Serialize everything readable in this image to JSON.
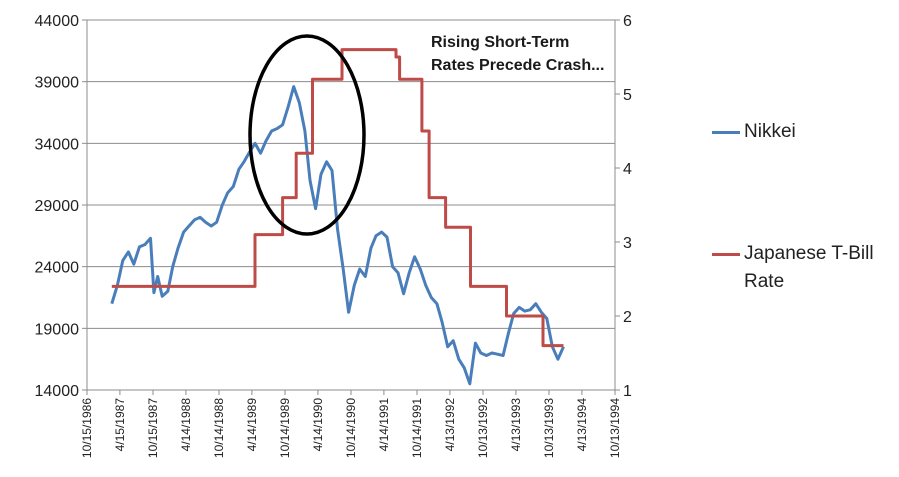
{
  "chart_data": {
    "type": "line",
    "annotation": [
      "Rising Short-Term",
      "Rates Precede Crash..."
    ],
    "x_ticks": [
      "10/15/1986",
      "4/15/1987",
      "10/15/1987",
      "4/14/1988",
      "10/14/1988",
      "4/14/1989",
      "10/14/1989",
      "4/14/1990",
      "10/14/1990",
      "4/14/1991",
      "10/14/1991",
      "4/13/1992",
      "10/13/1992",
      "4/13/1993",
      "10/13/1993",
      "4/13/1994",
      "10/13/1994"
    ],
    "y_left": {
      "min": 14000,
      "max": 44000,
      "ticks": [
        "14000",
        "19000",
        "24000",
        "29000",
        "34000",
        "39000",
        "44000"
      ]
    },
    "y_right": {
      "min": 1,
      "max": 6,
      "ticks": [
        "1",
        "2",
        "3",
        "4",
        "5",
        "6"
      ]
    },
    "grid": true,
    "legend_position": "right",
    "series": [
      {
        "name": "Nikkei",
        "axis": "left",
        "color": "#4a7ebb",
        "points": [
          [
            "1987-03-01",
            21000
          ],
          [
            "1987-04-01",
            22500
          ],
          [
            "1987-05-01",
            24500
          ],
          [
            "1987-06-01",
            25200
          ],
          [
            "1987-07-01",
            24200
          ],
          [
            "1987-08-01",
            25600
          ],
          [
            "1987-09-01",
            25800
          ],
          [
            "1987-10-01",
            26300
          ],
          [
            "1987-10-20",
            21900
          ],
          [
            "1987-11-10",
            23200
          ],
          [
            "1987-12-05",
            21600
          ],
          [
            "1988-01-05",
            22000
          ],
          [
            "1988-02-01",
            24000
          ],
          [
            "1988-03-01",
            25500
          ],
          [
            "1988-04-01",
            26800
          ],
          [
            "1988-05-01",
            27300
          ],
          [
            "1988-06-01",
            27800
          ],
          [
            "1988-07-01",
            28000
          ],
          [
            "1988-08-01",
            27600
          ],
          [
            "1988-09-01",
            27300
          ],
          [
            "1988-10-01",
            27600
          ],
          [
            "1988-11-01",
            29000
          ],
          [
            "1988-12-01",
            30000
          ],
          [
            "1989-01-01",
            30500
          ],
          [
            "1989-02-01",
            31900
          ],
          [
            "1989-03-01",
            32500
          ],
          [
            "1989-04-01",
            33300
          ],
          [
            "1989-05-01",
            34000
          ],
          [
            "1989-06-01",
            33200
          ],
          [
            "1989-07-01",
            34200
          ],
          [
            "1989-08-01",
            35000
          ],
          [
            "1989-09-01",
            35200
          ],
          [
            "1989-10-01",
            35500
          ],
          [
            "1989-11-01",
            37000
          ],
          [
            "1989-12-01",
            38600
          ],
          [
            "1990-01-01",
            37300
          ],
          [
            "1990-02-01",
            35000
          ],
          [
            "1990-03-01",
            31000
          ],
          [
            "1990-04-01",
            28700
          ],
          [
            "1990-05-01",
            31500
          ],
          [
            "1990-06-01",
            32500
          ],
          [
            "1990-07-01",
            31800
          ],
          [
            "1990-08-01",
            27000
          ],
          [
            "1990-09-01",
            23800
          ],
          [
            "1990-10-01",
            20300
          ],
          [
            "1990-11-01",
            22500
          ],
          [
            "1990-12-01",
            23800
          ],
          [
            "1991-01-01",
            23200
          ],
          [
            "1991-02-01",
            25500
          ],
          [
            "1991-03-01",
            26500
          ],
          [
            "1991-04-01",
            26800
          ],
          [
            "1991-05-01",
            26400
          ],
          [
            "1991-06-01",
            24000
          ],
          [
            "1991-07-01",
            23500
          ],
          [
            "1991-08-01",
            21800
          ],
          [
            "1991-09-01",
            23500
          ],
          [
            "1991-10-01",
            24800
          ],
          [
            "1991-11-01",
            23800
          ],
          [
            "1991-12-01",
            22500
          ],
          [
            "1992-01-01",
            21500
          ],
          [
            "1992-02-01",
            21000
          ],
          [
            "1992-03-01",
            19500
          ],
          [
            "1992-04-01",
            17500
          ],
          [
            "1992-05-01",
            18000
          ],
          [
            "1992-06-01",
            16500
          ],
          [
            "1992-07-01",
            15800
          ],
          [
            "1992-08-01",
            14500
          ],
          [
            "1992-09-01",
            17800
          ],
          [
            "1992-10-01",
            17000
          ],
          [
            "1992-11-01",
            16800
          ],
          [
            "1992-12-01",
            17000
          ],
          [
            "1993-01-01",
            16900
          ],
          [
            "1993-02-01",
            16800
          ],
          [
            "1993-03-01",
            18500
          ],
          [
            "1993-04-01",
            20200
          ],
          [
            "1993-05-01",
            20700
          ],
          [
            "1993-06-01",
            20400
          ],
          [
            "1993-07-01",
            20500
          ],
          [
            "1993-08-01",
            21000
          ],
          [
            "1993-09-01",
            20300
          ],
          [
            "1993-10-01",
            19800
          ],
          [
            "1993-11-01",
            17500
          ],
          [
            "1993-12-01",
            16500
          ],
          [
            "1994-01-01",
            17500
          ]
        ]
      },
      {
        "name": "Japanese T-Bill Rate",
        "axis": "right",
        "color": "#be4b48",
        "points": [
          [
            "1987-03-01",
            2.4
          ],
          [
            "1989-05-01",
            2.4
          ],
          [
            "1989-05-01",
            3.1
          ],
          [
            "1989-10-01",
            3.1
          ],
          [
            "1989-10-01",
            3.6
          ],
          [
            "1989-12-15",
            3.6
          ],
          [
            "1989-12-15",
            4.2
          ],
          [
            "1990-03-15",
            4.2
          ],
          [
            "1990-03-15",
            5.2
          ],
          [
            "1990-08-25",
            5.2
          ],
          [
            "1990-08-25",
            5.6
          ],
          [
            "1991-06-20",
            5.6
          ],
          [
            "1991-06-20",
            5.5
          ],
          [
            "1991-07-10",
            5.5
          ],
          [
            "1991-07-10",
            5.2
          ],
          [
            "1991-11-10",
            5.2
          ],
          [
            "1991-11-10",
            4.5
          ],
          [
            "1991-12-20",
            4.5
          ],
          [
            "1991-12-20",
            3.6
          ],
          [
            "1992-03-20",
            3.6
          ],
          [
            "1992-03-20",
            3.2
          ],
          [
            "1992-08-05",
            3.2
          ],
          [
            "1992-08-05",
            2.4
          ],
          [
            "1993-02-20",
            2.4
          ],
          [
            "1993-02-20",
            2.0
          ],
          [
            "1993-09-10",
            2.0
          ],
          [
            "1993-09-10",
            1.6
          ],
          [
            "1994-01-01",
            1.6
          ]
        ]
      }
    ]
  }
}
